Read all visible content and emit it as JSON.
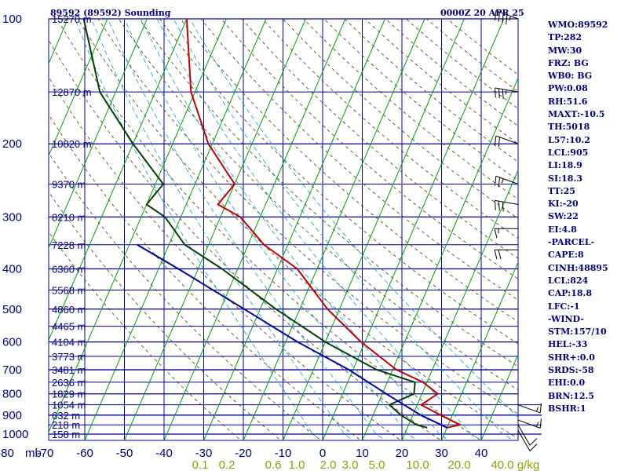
{
  "header": {
    "station": "89592 (89592) Sounding",
    "datetime": "0000Z 20 APR 25"
  },
  "x_axis_labels": [
    "mb",
    "-80",
    "-70",
    "-60",
    "-50",
    "-40",
    "-30",
    "-20",
    "-10",
    "0",
    "10",
    "20",
    "30",
    "40"
  ],
  "mixing_ratio_labels": [
    "0.1",
    "0.2",
    "0.6",
    "1.0",
    "2.0",
    "3.0",
    "5.0",
    "10.0",
    "20.0",
    "40.0",
    "g/kg"
  ],
  "indices": [
    "WMO:89592",
    "TP:282",
    "MW:30",
    "FRZ: BG",
    "WB0: BG",
    "PW:0.08",
    "RH:51.6",
    "MAXT:-10.5",
    "TH:5018",
    "L57:10.2",
    "LCL:905",
    "LI:18.9",
    "SI:18.3",
    "TT:25",
    "KI:-20",
    "SW:22",
    "EI:4.8",
    "-PARCEL-",
    "CAPE:8",
    "CINH:48895",
    "LCL:824",
    "CAP:18.8",
    "LFC:-1",
    "-WIND-",
    "STM:157/10",
    "HEL:-33",
    "SHR+:0.0",
    "SRDS:-58",
    "EHI:0.0",
    "BRN:12.5",
    "BSHR:1"
  ],
  "colors": {
    "grid": "#0000a0",
    "isotherm": "#00a000",
    "temperature": "#c00000",
    "dewpoint": "#004000",
    "parcel": "#0000a0",
    "dry_adiabat": "#404000",
    "moist_adiabat": "#00a0d0",
    "wind": "#000000"
  },
  "chart_data": {
    "type": "line",
    "xlabel": "",
    "ylabel": "",
    "pressure_levels": [
      100,
      200,
      300,
      400,
      500,
      600,
      700,
      800,
      900,
      1000
    ],
    "temperature_range": [
      -80,
      40
    ],
    "height_labels": [
      {
        "p": 100,
        "label": "15270 m"
      },
      {
        "p": 150,
        "label": "12870 m"
      },
      {
        "p": 200,
        "label": "10820 m"
      },
      {
        "p": 250,
        "label": "9370 m"
      },
      {
        "p": 300,
        "label": "8210 m"
      },
      {
        "p": 350,
        "label": "7228 m"
      },
      {
        "p": 400,
        "label": "6360 m"
      },
      {
        "p": 450,
        "label": "5568 m"
      },
      {
        "p": 500,
        "label": "4860 m"
      },
      {
        "p": 550,
        "label": "4465 m"
      },
      {
        "p": 600,
        "label": "4104 m"
      },
      {
        "p": 650,
        "label": "3773 m"
      },
      {
        "p": 700,
        "label": "3481 m"
      },
      {
        "p": 750,
        "label": "2636 m"
      },
      {
        "p": 800,
        "label": "1829 m"
      },
      {
        "p": 850,
        "label": "1054 m"
      },
      {
        "p": 900,
        "label": "632 m"
      },
      {
        "p": 950,
        "label": "218 m"
      },
      {
        "p": 1000,
        "label": "158 m"
      }
    ],
    "series": [
      {
        "key": "temperature",
        "points": [
          {
            "p": 965,
            "t": 30
          },
          {
            "p": 950,
            "t": 33
          },
          {
            "p": 900,
            "t": 27
          },
          {
            "p": 850,
            "t": 21
          },
          {
            "p": 800,
            "t": 24
          },
          {
            "p": 750,
            "t": 19
          },
          {
            "p": 700,
            "t": 11
          },
          {
            "p": 600,
            "t": -1
          },
          {
            "p": 500,
            "t": -13
          },
          {
            "p": 400,
            "t": -25
          },
          {
            "p": 350,
            "t": -36
          },
          {
            "p": 300,
            "t": -45
          },
          {
            "p": 280,
            "t": -52
          },
          {
            "p": 250,
            "t": -50
          },
          {
            "p": 200,
            "t": -61
          },
          {
            "p": 150,
            "t": -71
          },
          {
            "p": 100,
            "t": -80
          }
        ]
      },
      {
        "key": "dewpoint",
        "points": [
          {
            "p": 965,
            "t": 25
          },
          {
            "p": 950,
            "t": 22
          },
          {
            "p": 900,
            "t": 17
          },
          {
            "p": 850,
            "t": 13
          },
          {
            "p": 800,
            "t": 18
          },
          {
            "p": 750,
            "t": 17
          },
          {
            "p": 700,
            "t": 6
          },
          {
            "p": 600,
            "t": -10
          },
          {
            "p": 500,
            "t": -26
          },
          {
            "p": 400,
            "t": -44
          },
          {
            "p": 350,
            "t": -56
          },
          {
            "p": 300,
            "t": -64
          },
          {
            "p": 280,
            "t": -70
          },
          {
            "p": 250,
            "t": -68
          },
          {
            "p": 200,
            "t": -80
          },
          {
            "p": 150,
            "t": -94
          },
          {
            "p": 100,
            "t": -106
          }
        ]
      },
      {
        "key": "parcel",
        "points": [
          {
            "p": 965,
            "t": 30
          },
          {
            "p": 900,
            "t": 22
          },
          {
            "p": 800,
            "t": 11
          },
          {
            "p": 700,
            "t": -1
          },
          {
            "p": 600,
            "t": -17
          },
          {
            "p": 500,
            "t": -34
          },
          {
            "p": 400,
            "t": -55
          },
          {
            "p": 350,
            "t": -68
          }
        ]
      }
    ],
    "wind_barbs": [
      {
        "p": 980,
        "dir": 150,
        "spd": 10
      },
      {
        "p": 950,
        "dir": 150,
        "spd": 10
      },
      {
        "p": 925,
        "dir": 110,
        "spd": 15
      },
      {
        "p": 850,
        "dir": 110,
        "spd": 15
      },
      {
        "p": 360,
        "dir": 270,
        "spd": 20
      },
      {
        "p": 320,
        "dir": 270,
        "spd": 15
      },
      {
        "p": 280,
        "dir": 280,
        "spd": 30
      },
      {
        "p": 250,
        "dir": 290,
        "spd": 25
      },
      {
        "p": 200,
        "dir": 290,
        "spd": 20
      },
      {
        "p": 150,
        "dir": 280,
        "spd": 35
      },
      {
        "p": 100,
        "dir": 290,
        "spd": 45
      }
    ]
  }
}
